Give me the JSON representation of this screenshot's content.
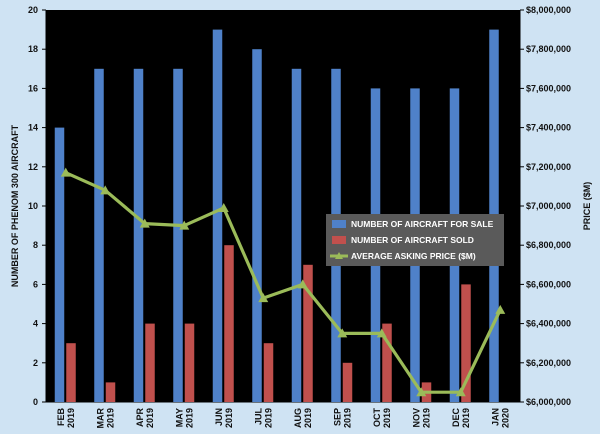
{
  "chart_data": {
    "type": "bar",
    "categories": [
      [
        "FEB",
        "2019"
      ],
      [
        "MAR",
        "2019"
      ],
      [
        "APR",
        "2019"
      ],
      [
        "MAY",
        "2019"
      ],
      [
        "JUN",
        "2019"
      ],
      [
        "JUL",
        "2019"
      ],
      [
        "AUG",
        "2019"
      ],
      [
        "SEP",
        "2019"
      ],
      [
        "OCT",
        "2019"
      ],
      [
        "NOV",
        "2019"
      ],
      [
        "DEC",
        "2019"
      ],
      [
        "JAN",
        "2020"
      ]
    ],
    "series": [
      {
        "name": "NUMBER OF AIRCRAFT FOR SALE",
        "type": "bar",
        "axis": "left",
        "color": "#4f81c9",
        "values": [
          14,
          17,
          17,
          17,
          19,
          18,
          17,
          17,
          16,
          16,
          16,
          19
        ]
      },
      {
        "name": "NUMBER OF AIRCRAFT SOLD",
        "type": "bar",
        "axis": "left",
        "color": "#c0504d",
        "values": [
          3,
          1,
          4,
          4,
          8,
          3,
          7,
          2,
          4,
          1,
          6,
          0
        ]
      },
      {
        "name": "AVERAGE ASKING PRICE ($M)",
        "type": "line",
        "axis": "right",
        "color": "#9bbb59",
        "values": [
          7170000,
          7080000,
          6910000,
          6900000,
          6990000,
          6530000,
          6600000,
          6350000,
          6350000,
          6050000,
          6050000,
          6470000
        ]
      }
    ],
    "ylabel": "NUMBER OF PHENOM 300 AIRCRAFT",
    "y2label": "PRICE ($M)",
    "ylim": [
      0,
      20
    ],
    "y2lim": [
      6000000,
      8000000
    ],
    "yticks": [
      "0",
      "2",
      "4",
      "6",
      "8",
      "10",
      "12",
      "14",
      "16",
      "18",
      "20"
    ],
    "y2ticks": [
      "$6,000,000",
      "$6,200,000",
      "$6,400,000",
      "$6,600,000",
      "$6,800,000",
      "$7,000,000",
      "$7,200,000",
      "$7,400,000",
      "$7,600,000",
      "$7,800,000",
      "$8,000,000"
    ],
    "legend_position": "right",
    "grid": false,
    "plot_background": "#000000"
  }
}
